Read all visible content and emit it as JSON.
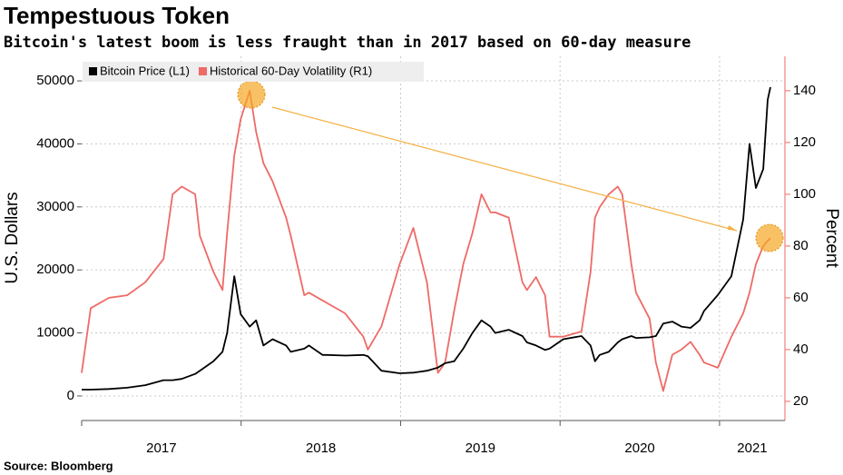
{
  "chart_data": {
    "type": "line",
    "title": "Tempestuous Token",
    "subtitle": "Bitcoin's latest boom is less fraught than in 2017 based on 60-day measure",
    "source": "Source: Bloomberg",
    "ylabel": "U.S. Dollars",
    "y2label": "Percent",
    "x": [
      2017.0,
      2017.057,
      2017.171,
      2017.285,
      2017.399,
      2017.513,
      2017.57,
      2017.627,
      2017.712,
      2017.741,
      2017.826,
      2017.883,
      2017.912,
      2017.957,
      2017.997,
      2018.054,
      2018.094,
      2018.14,
      2018.197,
      2018.282,
      2018.311,
      2018.396,
      2018.425,
      2018.51,
      2018.538,
      2018.652,
      2018.766,
      2018.795,
      2018.88,
      2018.994,
      2019.08,
      2019.108,
      2019.165,
      2019.234,
      2019.279,
      2019.336,
      2019.393,
      2019.45,
      2019.507,
      2019.564,
      2019.593,
      2019.678,
      2019.764,
      2019.792,
      2019.849,
      2019.906,
      2019.934,
      2020.02,
      2020.134,
      2020.191,
      2020.219,
      2020.248,
      2020.305,
      2020.362,
      2020.39,
      2020.447,
      2020.476,
      2020.561,
      2020.601,
      2020.647,
      2020.704,
      2020.761,
      2020.818,
      2020.875,
      2020.903,
      2020.989,
      2021.074,
      2021.148,
      2021.188,
      2021.228,
      2021.274,
      2021.302,
      2021.319
    ],
    "series": [
      {
        "name": "Bitcoin Price (L1)",
        "color": "#000000",
        "axis": "y",
        "values": [
          1000,
          1000,
          1100,
          1300,
          1700,
          2500,
          2500,
          2700,
          3500,
          4000,
          5500,
          7000,
          10000,
          19000,
          13000,
          11000,
          12000,
          8000,
          9000,
          8000,
          7000,
          7500,
          8000,
          6500,
          6500,
          6400,
          6500,
          6300,
          4000,
          3600,
          3700,
          3800,
          4000,
          4500,
          5200,
          5500,
          7500,
          10000,
          12000,
          11000,
          10000,
          10500,
          9500,
          8500,
          8000,
          7300,
          7500,
          9000,
          9500,
          8000,
          5500,
          6500,
          7000,
          8500,
          9000,
          9500,
          9200,
          9300,
          9500,
          11500,
          11800,
          11000,
          10800,
          12000,
          13500,
          16000,
          19000,
          28000,
          40000,
          33000,
          36000,
          47000,
          49000
        ]
      },
      {
        "name": "Historical 60-Day Volatility (R1)",
        "color": "#ee6a66",
        "axis": "y2",
        "values": [
          31,
          56,
          60,
          61,
          66,
          75,
          100,
          103,
          100,
          84,
          70,
          63,
          85,
          115,
          129,
          140,
          124,
          112,
          105,
          91,
          84,
          61,
          62,
          59,
          58,
          54,
          45,
          40,
          49,
          73,
          87,
          80,
          66,
          31,
          35,
          55,
          73,
          85,
          100,
          93,
          93,
          91,
          66,
          63,
          68,
          61,
          45,
          45,
          47,
          70,
          91,
          95,
          100,
          103,
          100,
          73,
          62,
          52,
          35,
          24,
          38,
          40,
          43,
          38,
          35,
          33,
          45,
          54,
          62,
          73,
          80,
          82,
          83
        ]
      }
    ],
    "xlim": [
      2017,
      2021.41
    ],
    "xticks": [
      2017,
      2018,
      2019,
      2020,
      2021
    ],
    "ylim": [
      -3900,
      53900
    ],
    "yticks": [
      0,
      10000,
      20000,
      30000,
      40000,
      50000
    ],
    "y2lim": [
      12.6,
      153.3
    ],
    "y2ticks": [
      20,
      40,
      60,
      80,
      100,
      120,
      140
    ],
    "grid": true,
    "legend": "top-left"
  }
}
